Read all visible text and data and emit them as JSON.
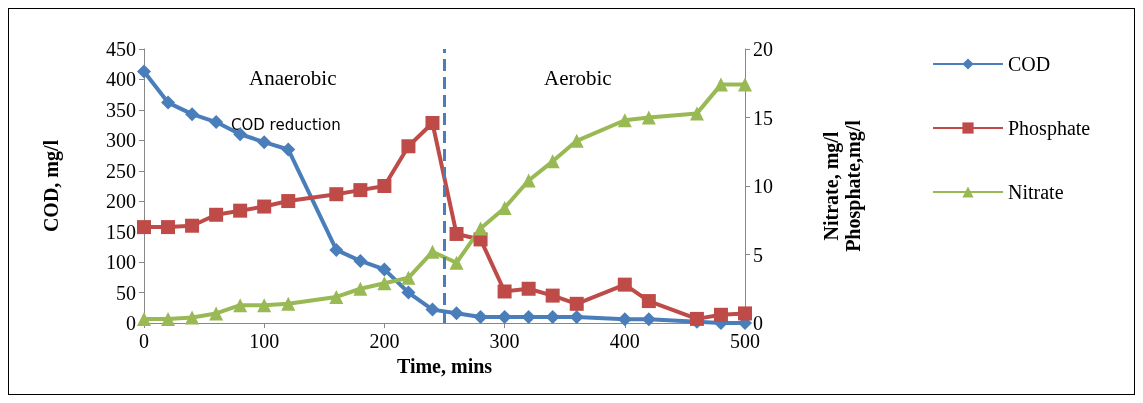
{
  "chart_data": {
    "type": "line",
    "xlabel": "Time, mins",
    "ylabel": "COD, mg/l",
    "y2label": "Nitrate, mg/l\nPhosphate,mg/l",
    "x": [
      0,
      20,
      40,
      60,
      80,
      100,
      120,
      160,
      180,
      200,
      220,
      240,
      260,
      280,
      300,
      320,
      340,
      360,
      400,
      420,
      460,
      480,
      500
    ],
    "series": [
      {
        "name": "COD",
        "color": "#4a7ebb",
        "marker": "diamond",
        "values": [
          413,
          362,
          343,
          330,
          310,
          297,
          285,
          120,
          102,
          88,
          50,
          22,
          16,
          10,
          10,
          10,
          10,
          10,
          6,
          6,
          2,
          0,
          0
        ]
      },
      {
        "name": "Phosphate",
        "color": "#be4b48",
        "marker": "square",
        "axis": "y2",
        "values": [
          7.0,
          7.0,
          7.1,
          7.9,
          8.2,
          8.5,
          8.9,
          9.4,
          9.7,
          10.0,
          12.9,
          14.6,
          6.5,
          6.1,
          2.3,
          2.5,
          2.0,
          1.4,
          2.8,
          1.6,
          0.3,
          0.6,
          0.7
        ]
      },
      {
        "name": "Nitrate",
        "color": "#98b954",
        "marker": "triangle",
        "axis": "y2",
        "values": [
          0.3,
          0.3,
          0.4,
          0.7,
          1.3,
          1.3,
          1.4,
          1.9,
          2.5,
          2.9,
          3.3,
          5.2,
          4.4,
          6.9,
          8.4,
          10.4,
          11.8,
          13.3,
          14.8,
          15.0,
          15.3,
          17.4,
          17.4
        ]
      }
    ],
    "xlim": [
      0,
      500
    ],
    "xticks": [
      0,
      100,
      200,
      300,
      400,
      500
    ],
    "ylim": [
      0,
      450
    ],
    "yticks": [
      0,
      50,
      100,
      150,
      200,
      250,
      300,
      350,
      400,
      450
    ],
    "y2lim": [
      0,
      20
    ],
    "y2ticks": [
      0,
      5,
      10,
      15,
      20
    ],
    "ref_lines": [
      {
        "axis": "x",
        "value": 250,
        "color": "#4a7ebb",
        "line_style": "dashed"
      }
    ],
    "annotations": [
      "Anaerobic",
      "Aerobic",
      "COD reduction"
    ],
    "legend": "right",
    "grid": false
  }
}
